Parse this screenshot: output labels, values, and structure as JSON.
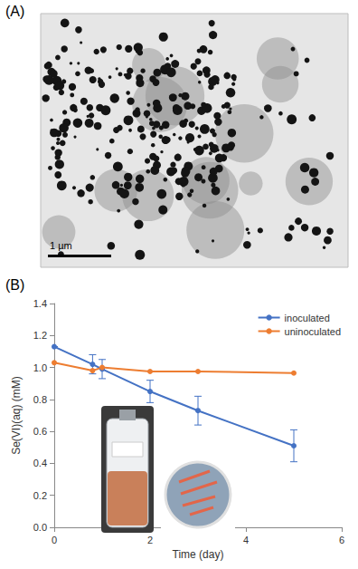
{
  "panel_labels": [
    "(A)",
    "(B)"
  ],
  "scale_bar_label": "1 µm",
  "chart_data": {
    "type": "line",
    "x_label": "Time (day)",
    "y_label": "Se(VI)(aq) (mM)",
    "x": [
      0,
      0.8,
      1,
      2,
      3,
      5
    ],
    "series": [
      {
        "name": "inoculated",
        "color": "#4472c4",
        "values": [
          1.13,
          1.02,
          0.99,
          0.85,
          0.73,
          0.51
        ],
        "errors": [
          0,
          0.06,
          0.06,
          0.07,
          0.09,
          0.1
        ]
      },
      {
        "name": "uninoculated",
        "color": "#ed7d31",
        "values": [
          1.03,
          0.98,
          1.0,
          0.975,
          0.975,
          0.965
        ]
      }
    ],
    "xlim": [
      0,
      6
    ],
    "xticks": [
      0,
      2,
      4,
      6
    ],
    "ylim": [
      0,
      1.4
    ],
    "yticks": [
      {
        "value": 0,
        "label": "0.0"
      },
      0.2,
      0.4,
      0.6,
      0.8,
      {
        "value": 1,
        "label": "1.0"
      },
      1.2,
      1.4
    ],
    "marker": "circle",
    "legend": "upper right",
    "grid": false
  }
}
